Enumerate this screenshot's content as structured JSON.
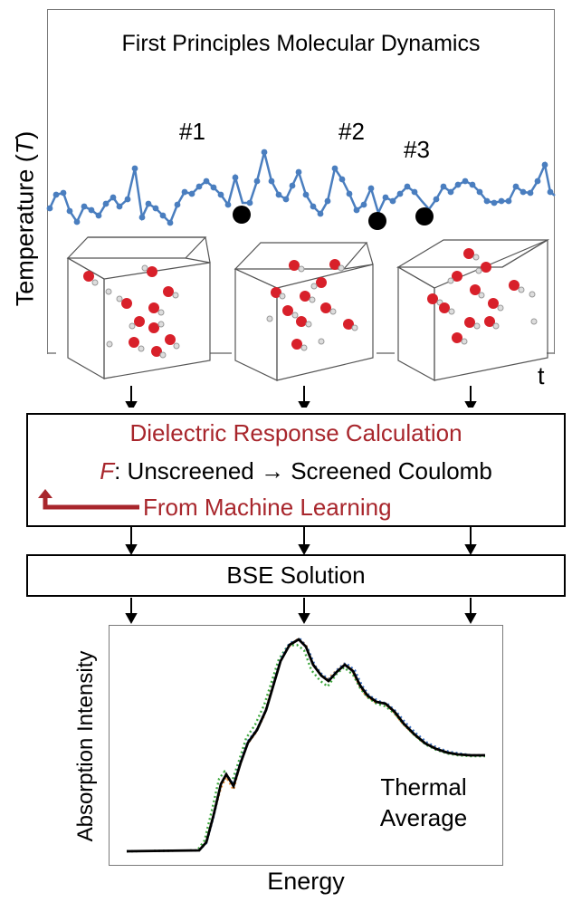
{
  "top_panel": {
    "title": "First Principles Molecular Dynamics",
    "y_label": "Temperature (",
    "y_label_var": "T",
    "y_label_end": ")",
    "x_label": "t",
    "snapshots": [
      "#1",
      "#2",
      "#3"
    ],
    "line_color": "#4a7ebf"
  },
  "dielectric": {
    "line1": "Dielectric Response Calculation",
    "line2_var": "F",
    "line2": ": Unscreened → Screened Coulomb",
    "line3": "From Machine Learning",
    "accent_color": "#a8262c"
  },
  "bse": {
    "label": "BSE Solution"
  },
  "spectrum": {
    "y_label": "Absorption Intensity",
    "x_label": "Energy",
    "annotation_line1": "Thermal",
    "annotation_line2": "Average"
  }
}
